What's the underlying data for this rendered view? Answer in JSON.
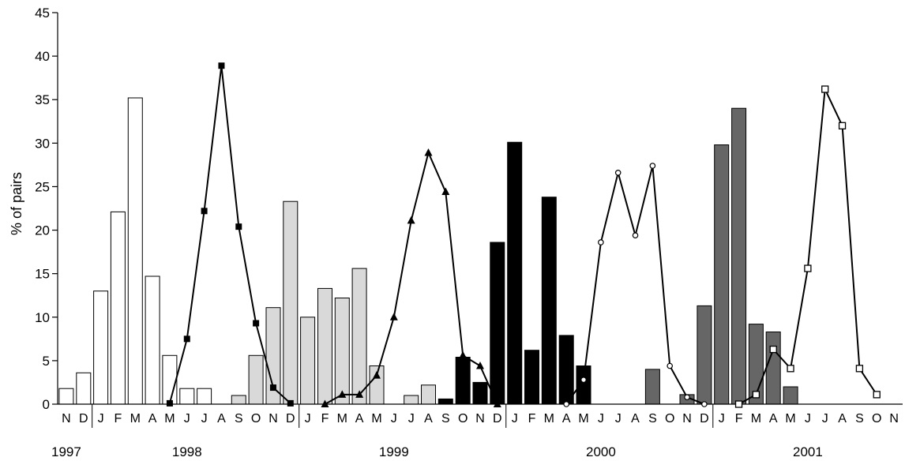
{
  "chart_data": {
    "type": "bar",
    "ylabel": "% of pairs",
    "ylim": [
      0,
      45
    ],
    "yticks": [
      "0",
      "5",
      "10",
      "15",
      "20",
      "25",
      "30",
      "35",
      "40",
      "45"
    ],
    "months": [
      "N",
      "D",
      "J",
      "F",
      "M",
      "A",
      "M",
      "J",
      "J",
      "A",
      "S",
      "O",
      "N",
      "D",
      "J",
      "F",
      "M",
      "A",
      "M",
      "J",
      "J",
      "A",
      "S",
      "O",
      "N",
      "D",
      "J",
      "F",
      "M",
      "A",
      "M",
      "J",
      "J",
      "A",
      "S",
      "O",
      "N",
      "D",
      "J",
      "F",
      "M",
      "A",
      "M",
      "J",
      "J",
      "A",
      "S",
      "O",
      "N"
    ],
    "years": [
      "1997",
      "1998",
      "1999",
      "2000",
      "2001"
    ],
    "colors": {
      "white": "#ffffff",
      "lightgray": "#d9d9d9",
      "black": "#000000",
      "darkgray": "#666666"
    },
    "bar_series": [
      {
        "fill": "white",
        "values": [
          1.8,
          3.6,
          13.0,
          22.1,
          35.2,
          14.7,
          5.6,
          1.8,
          1.8,
          null,
          null,
          null,
          null,
          null,
          null,
          null,
          null,
          null,
          null,
          null,
          null,
          null,
          null,
          null,
          null,
          null,
          null,
          null,
          null,
          null,
          null,
          null,
          null,
          null,
          null,
          null,
          null,
          null,
          null,
          null,
          null,
          null,
          null,
          null,
          null,
          null,
          null,
          null,
          null
        ]
      },
      {
        "fill": "lightgray",
        "values": [
          null,
          null,
          null,
          null,
          null,
          null,
          null,
          null,
          null,
          null,
          1.0,
          5.6,
          11.1,
          23.3,
          10.0,
          13.3,
          12.2,
          15.6,
          4.4,
          null,
          1.0,
          2.2,
          null,
          null,
          null,
          null,
          null,
          null,
          null,
          null,
          null,
          null,
          null,
          null,
          null,
          null,
          null,
          null,
          null,
          null,
          null,
          null,
          null,
          null,
          null,
          null,
          null,
          null,
          null
        ]
      },
      {
        "fill": "black",
        "values": [
          null,
          null,
          null,
          null,
          null,
          null,
          null,
          null,
          null,
          null,
          null,
          null,
          null,
          null,
          null,
          null,
          null,
          null,
          null,
          null,
          null,
          null,
          0.6,
          5.4,
          2.5,
          18.6,
          30.1,
          6.2,
          23.8,
          7.9,
          4.4,
          null,
          null,
          null,
          null,
          null,
          null,
          null,
          null,
          null,
          null,
          null,
          null,
          null,
          null,
          null,
          null,
          null,
          null
        ]
      },
      {
        "fill": "darkgray",
        "values": [
          null,
          null,
          null,
          null,
          null,
          null,
          null,
          null,
          null,
          null,
          null,
          null,
          null,
          null,
          null,
          null,
          null,
          null,
          null,
          null,
          null,
          null,
          null,
          null,
          null,
          null,
          null,
          null,
          null,
          null,
          null,
          null,
          null,
          null,
          4.0,
          null,
          1.1,
          11.3,
          29.8,
          34.0,
          9.2,
          8.3,
          2.0,
          null,
          null,
          null,
          null,
          null,
          null
        ]
      }
    ],
    "line_series": [
      {
        "marker": "filled-square",
        "start": 6,
        "values": [
          0.1,
          7.5,
          22.2,
          38.9,
          20.4,
          9.3,
          1.9,
          0.1
        ]
      },
      {
        "marker": "filled-triangle",
        "start": 15,
        "values": [
          0.0,
          1.1,
          1.1,
          3.3,
          10.0,
          21.1,
          28.9,
          24.4,
          5.6,
          4.4,
          0.0
        ]
      },
      {
        "marker": "open-circle",
        "start": 29,
        "values": [
          0.0,
          2.8,
          18.6,
          26.6,
          19.4,
          27.4,
          4.4,
          0.8,
          0.0
        ]
      },
      {
        "marker": "open-square",
        "start": 39,
        "values": [
          0.0,
          1.1,
          6.3,
          4.1,
          15.6,
          36.2,
          32.0,
          4.1,
          1.1
        ]
      }
    ]
  }
}
